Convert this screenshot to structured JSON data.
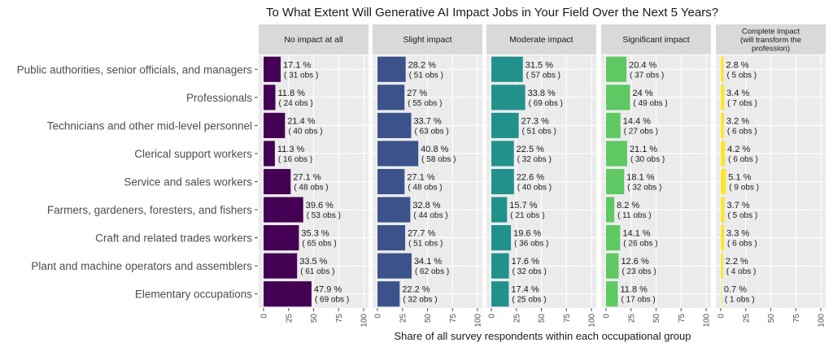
{
  "chart_data": {
    "type": "bar",
    "orientation": "horizontal",
    "faceted": true,
    "title": "To What Extent Will Generative AI Impact Jobs in Your Field Over the Next 5 Years?",
    "xlabel": "Share of all survey respondents within each occupational group",
    "xlim": [
      0,
      100
    ],
    "xticks": [
      "0",
      "25",
      "50",
      "75",
      "100"
    ],
    "categories": [
      "Public authorities, senior officials, and managers",
      "Professionals",
      "Technicians and other mid-level personnel",
      "Clerical support workers",
      "Service and sales workers",
      "Farmers, gardeners, foresters, and fishers",
      "Craft and related trades workers",
      "Plant and machine operators and assemblers",
      "Elementary occupations"
    ],
    "series": [
      {
        "name": "No impact at all",
        "color": "#440154",
        "values": [
          17.1,
          11.8,
          21.4,
          11.3,
          27.1,
          39.6,
          35.3,
          33.5,
          47.9
        ],
        "labels": [
          "17.1 %",
          "11.8 %",
          "21.4 %",
          "11.3 %",
          "27.1 %",
          "39.6 %",
          "35.3 %",
          "33.5 %",
          "47.9 %"
        ],
        "obs": [
          "( 31 obs )",
          "( 24 obs )",
          "( 40 obs )",
          "( 16 obs )",
          "( 48 obs )",
          "( 53 obs )",
          "( 65 obs )",
          "( 61 obs )",
          "( 69 obs )"
        ]
      },
      {
        "name": "Slight impact",
        "color": "#3b528b",
        "values": [
          28.2,
          27,
          33.7,
          40.8,
          27.1,
          32.8,
          27.7,
          34.1,
          22.2
        ],
        "labels": [
          "28.2 %",
          "27 %",
          "33.7 %",
          "40.8 %",
          "27.1 %",
          "32.8 %",
          "27.7 %",
          "34.1 %",
          "22.2 %"
        ],
        "obs": [
          "( 51 obs )",
          "( 55 obs )",
          "( 63 obs )",
          "( 58 obs )",
          "( 48 obs )",
          "( 44 obs )",
          "( 51 obs )",
          "( 62 obs )",
          "( 32 obs )"
        ]
      },
      {
        "name": "Moderate impact",
        "color": "#21918c",
        "values": [
          31.5,
          33.8,
          27.3,
          22.5,
          22.6,
          15.7,
          19.6,
          17.6,
          17.4
        ],
        "labels": [
          "31.5 %",
          "33.8 %",
          "27.3 %",
          "22.5 %",
          "22.6 %",
          "15.7 %",
          "19.6 %",
          "17.6 %",
          "17.4 %"
        ],
        "obs": [
          "( 57 obs )",
          "( 69 obs )",
          "( 51 obs )",
          "( 32 obs )",
          "( 40 obs )",
          "( 21 obs )",
          "( 36 obs )",
          "( 32 obs )",
          "( 25 obs )"
        ]
      },
      {
        "name": "Significant impact",
        "color": "#5ec962",
        "values": [
          20.4,
          24,
          14.4,
          21.1,
          18.1,
          8.2,
          14.1,
          12.6,
          11.8
        ],
        "labels": [
          "20.4 %",
          "24 %",
          "14.4 %",
          "21.1 %",
          "18.1 %",
          "8.2 %",
          "14.1 %",
          "12.6 %",
          "11.8 %"
        ],
        "obs": [
          "( 37 obs )",
          "( 49 obs )",
          "( 27 obs )",
          "( 30 obs )",
          "( 32 obs )",
          "( 11 obs )",
          "( 26 obs )",
          "( 23 obs )",
          "( 17 obs )"
        ]
      },
      {
        "name": "Complete impact (will transform the profession)",
        "name_lines": [
          "Complete impact",
          "(will transform the",
          "profession)"
        ],
        "color": "#fde725",
        "values": [
          2.8,
          3.4,
          3.2,
          4.2,
          5.1,
          3.7,
          3.3,
          2.2,
          0.7
        ],
        "labels": [
          "2.8 %",
          "3.4 %",
          "3.2 %",
          "4.2 %",
          "5.1 %",
          "3.7 %",
          "3.3 %",
          "2.2 %",
          "0.7 %"
        ],
        "obs": [
          "( 5 obs )",
          "( 7 obs )",
          "( 6 obs )",
          "( 6 obs )",
          "( 9 obs )",
          "( 5 obs )",
          "( 6 obs )",
          "( 4 obs )",
          "( 1 obs )"
        ]
      }
    ],
    "grid": true,
    "legend": "none"
  }
}
